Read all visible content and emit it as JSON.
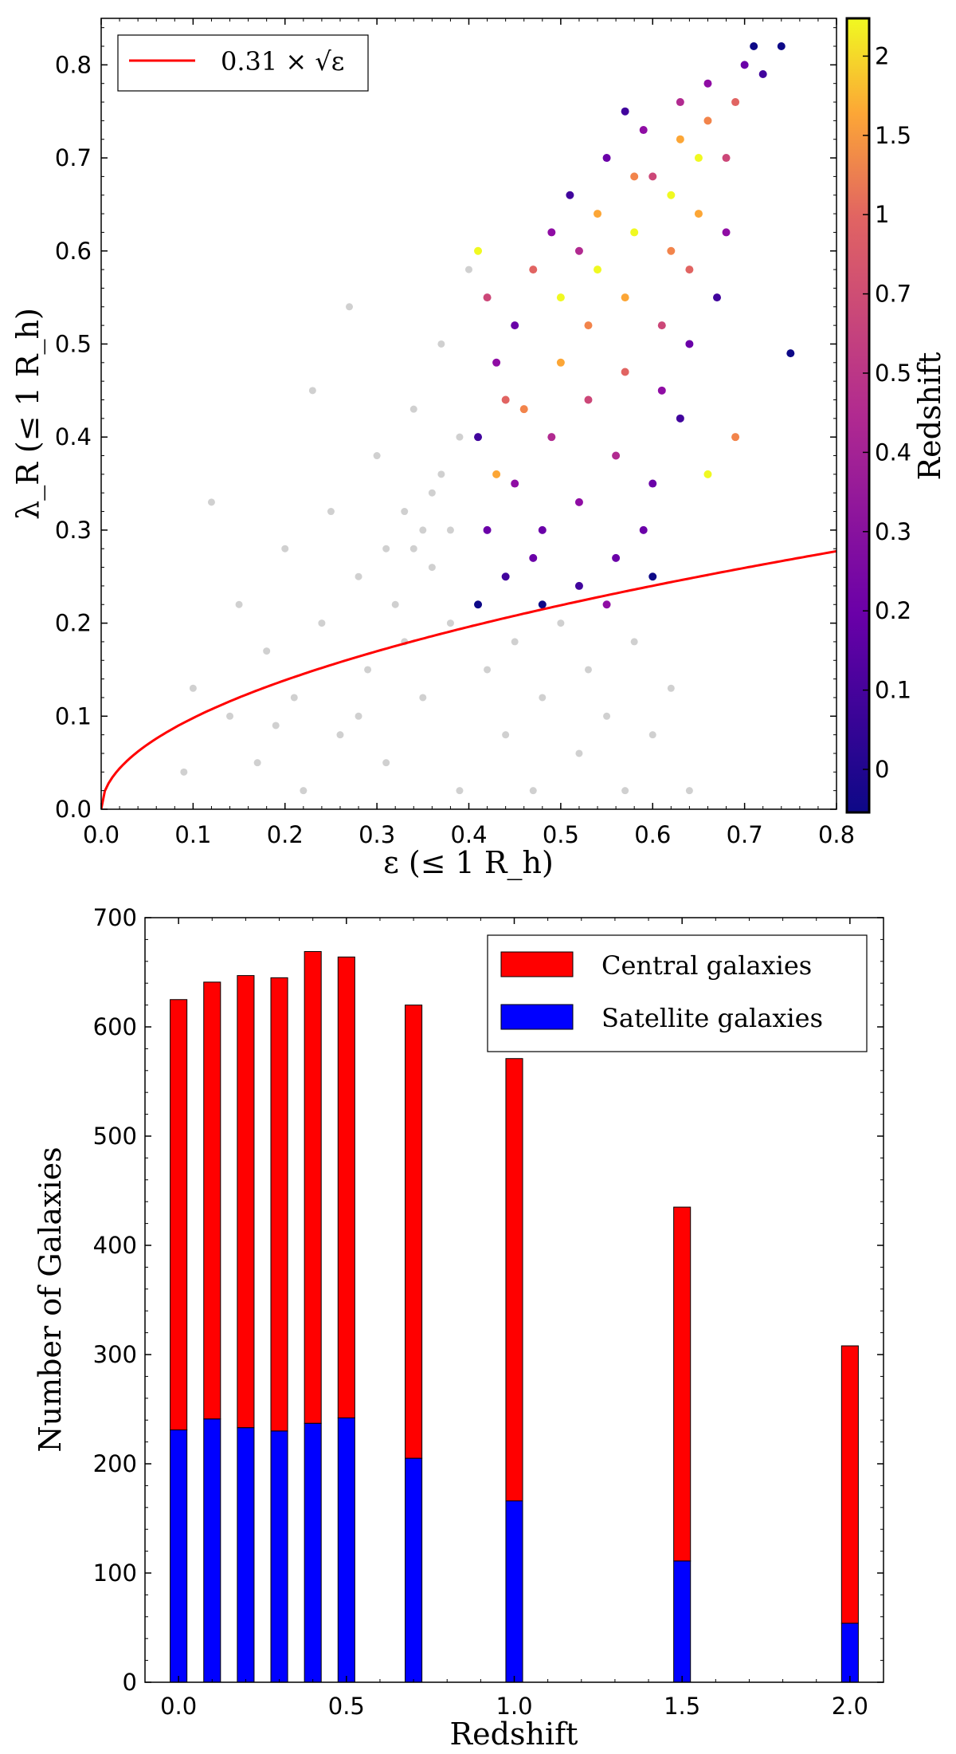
{
  "chart_data": [
    {
      "type": "scatter",
      "xlabel": "ε (≤ 1 R_h)",
      "ylabel": "λ_R (≤ 1 R_h)",
      "xlim": [
        0,
        0.8
      ],
      "ylim": [
        0,
        0.85
      ],
      "xticks": [
        "0.0",
        "0.1",
        "0.2",
        "0.3",
        "0.4",
        "0.5",
        "0.6",
        "0.7",
        "0.8"
      ],
      "yticks": [
        "0.0",
        "0.1",
        "0.2",
        "0.3",
        "0.4",
        "0.5",
        "0.6",
        "0.7",
        "0.8"
      ],
      "legend": {
        "placement": "top-left",
        "entries": [
          {
            "label": "0.31 × √ε",
            "color": "#ff0000"
          }
        ]
      },
      "curve": {
        "coefficient": 0.31,
        "color": "#ff0000"
      },
      "colorbar": {
        "label": "Redshift",
        "colormap": "plasma",
        "ticks": [
          "0",
          "0.1",
          "0.2",
          "0.3",
          "0.4",
          "0.5",
          "0.7",
          "1",
          "1.5",
          "2"
        ]
      },
      "grey_points_color": "#b0b0b0",
      "grey_points": [
        [
          0.09,
          0.04
        ],
        [
          0.1,
          0.13
        ],
        [
          0.12,
          0.33
        ],
        [
          0.14,
          0.1
        ],
        [
          0.15,
          0.22
        ],
        [
          0.17,
          0.05
        ],
        [
          0.18,
          0.17
        ],
        [
          0.2,
          0.28
        ],
        [
          0.21,
          0.12
        ],
        [
          0.22,
          0.02
        ],
        [
          0.23,
          0.45
        ],
        [
          0.24,
          0.2
        ],
        [
          0.25,
          0.32
        ],
        [
          0.26,
          0.08
        ],
        [
          0.27,
          0.54
        ],
        [
          0.28,
          0.25
        ],
        [
          0.29,
          0.15
        ],
        [
          0.3,
          0.38
        ],
        [
          0.31,
          0.28
        ],
        [
          0.31,
          0.05
        ],
        [
          0.32,
          0.22
        ],
        [
          0.33,
          0.32
        ],
        [
          0.34,
          0.43
        ],
        [
          0.35,
          0.3
        ],
        [
          0.35,
          0.12
        ],
        [
          0.36,
          0.26
        ],
        [
          0.37,
          0.36
        ],
        [
          0.37,
          0.5
        ],
        [
          0.38,
          0.3
        ],
        [
          0.38,
          0.2
        ],
        [
          0.39,
          0.4
        ],
        [
          0.39,
          0.02
        ],
        [
          0.4,
          0.58
        ],
        [
          0.42,
          0.15
        ],
        [
          0.44,
          0.08
        ],
        [
          0.45,
          0.18
        ],
        [
          0.47,
          0.02
        ],
        [
          0.48,
          0.12
        ],
        [
          0.5,
          0.2
        ],
        [
          0.52,
          0.06
        ],
        [
          0.53,
          0.15
        ],
        [
          0.55,
          0.1
        ],
        [
          0.57,
          0.02
        ],
        [
          0.58,
          0.18
        ],
        [
          0.6,
          0.08
        ],
        [
          0.62,
          0.13
        ],
        [
          0.64,
          0.02
        ],
        [
          0.33,
          0.18
        ],
        [
          0.28,
          0.1
        ],
        [
          0.36,
          0.34
        ],
        [
          0.34,
          0.28
        ],
        [
          0.19,
          0.09
        ]
      ],
      "points": [
        [
          0.41,
          0.22,
          "0"
        ],
        [
          0.42,
          0.3,
          "0.2"
        ],
        [
          0.41,
          0.4,
          "0.1"
        ],
        [
          0.43,
          0.48,
          "0.3"
        ],
        [
          0.42,
          0.55,
          "0.5"
        ],
        [
          0.41,
          0.6,
          "2"
        ],
        [
          0.44,
          0.25,
          "0.1"
        ],
        [
          0.45,
          0.35,
          "0.3"
        ],
        [
          0.46,
          0.43,
          "1"
        ],
        [
          0.45,
          0.52,
          "0.2"
        ],
        [
          0.47,
          0.58,
          "0.7"
        ],
        [
          0.48,
          0.22,
          "0"
        ],
        [
          0.48,
          0.3,
          "0.2"
        ],
        [
          0.49,
          0.4,
          "0.4"
        ],
        [
          0.5,
          0.48,
          "1.5"
        ],
        [
          0.5,
          0.55,
          "2"
        ],
        [
          0.49,
          0.62,
          "0.3"
        ],
        [
          0.51,
          0.66,
          "0.1"
        ],
        [
          0.52,
          0.24,
          "0.1"
        ],
        [
          0.52,
          0.33,
          "0.3"
        ],
        [
          0.53,
          0.44,
          "0.5"
        ],
        [
          0.53,
          0.52,
          "1"
        ],
        [
          0.54,
          0.58,
          "2"
        ],
        [
          0.54,
          0.64,
          "1.5"
        ],
        [
          0.55,
          0.7,
          "0.2"
        ],
        [
          0.56,
          0.27,
          "0.2"
        ],
        [
          0.56,
          0.38,
          "0.4"
        ],
        [
          0.57,
          0.47,
          "0.7"
        ],
        [
          0.57,
          0.55,
          "1.5"
        ],
        [
          0.58,
          0.62,
          "2"
        ],
        [
          0.58,
          0.68,
          "1"
        ],
        [
          0.59,
          0.73,
          "0.3"
        ],
        [
          0.6,
          0.25,
          "0"
        ],
        [
          0.6,
          0.35,
          "0.2"
        ],
        [
          0.61,
          0.45,
          "0.3"
        ],
        [
          0.61,
          0.52,
          "0.5"
        ],
        [
          0.62,
          0.6,
          "1"
        ],
        [
          0.62,
          0.66,
          "2"
        ],
        [
          0.63,
          0.72,
          "1.5"
        ],
        [
          0.63,
          0.76,
          "0.4"
        ],
        [
          0.64,
          0.5,
          "0.2"
        ],
        [
          0.64,
          0.58,
          "0.7"
        ],
        [
          0.65,
          0.64,
          "1.5"
        ],
        [
          0.65,
          0.7,
          "2"
        ],
        [
          0.66,
          0.74,
          "1"
        ],
        [
          0.66,
          0.78,
          "0.3"
        ],
        [
          0.67,
          0.55,
          "0.1"
        ],
        [
          0.68,
          0.62,
          "0.3"
        ],
        [
          0.68,
          0.7,
          "0.5"
        ],
        [
          0.69,
          0.76,
          "0.7"
        ],
        [
          0.7,
          0.8,
          "0.2"
        ],
        [
          0.71,
          0.82,
          "0"
        ],
        [
          0.72,
          0.79,
          "0.1"
        ],
        [
          0.74,
          0.82,
          "0"
        ],
        [
          0.75,
          0.49,
          "0"
        ],
        [
          0.69,
          0.4,
          "1"
        ],
        [
          0.66,
          0.36,
          "2"
        ],
        [
          0.63,
          0.42,
          "0.1"
        ],
        [
          0.59,
          0.3,
          "0.2"
        ],
        [
          0.55,
          0.22,
          "0.3"
        ],
        [
          0.47,
          0.27,
          "0.2"
        ],
        [
          0.43,
          0.36,
          "1.5"
        ],
        [
          0.44,
          0.44,
          "0.7"
        ],
        [
          0.52,
          0.6,
          "0.4"
        ],
        [
          0.6,
          0.68,
          "0.5"
        ],
        [
          0.57,
          0.75,
          "0.1"
        ]
      ]
    },
    {
      "type": "bar",
      "stacked": true,
      "xlabel": "Redshift",
      "ylabel": "Number of Galaxies",
      "xlim": [
        -0.1,
        2.1
      ],
      "ylim": [
        0,
        700
      ],
      "xticks": [
        "0.0",
        "0.5",
        "1.0",
        "1.5",
        "2.0"
      ],
      "yticks": [
        "0",
        "100",
        "200",
        "300",
        "400",
        "500",
        "600",
        "700"
      ],
      "legend": {
        "placement": "top-right"
      },
      "x": [
        0.0,
        0.1,
        0.2,
        0.3,
        0.4,
        0.5,
        0.7,
        1.0,
        1.5,
        2.0
      ],
      "totals": [
        625,
        641,
        647,
        645,
        669,
        664,
        620,
        571,
        435,
        308
      ],
      "series": [
        {
          "name": "Central galaxies",
          "color": "#ff0000",
          "values": [
            394,
            400,
            414,
            415,
            432,
            422,
            415,
            405,
            324,
            254
          ]
        },
        {
          "name": "Satellite galaxies",
          "color": "#0000ff",
          "values": [
            231,
            241,
            233,
            230,
            237,
            242,
            205,
            166,
            111,
            54
          ]
        }
      ]
    }
  ]
}
